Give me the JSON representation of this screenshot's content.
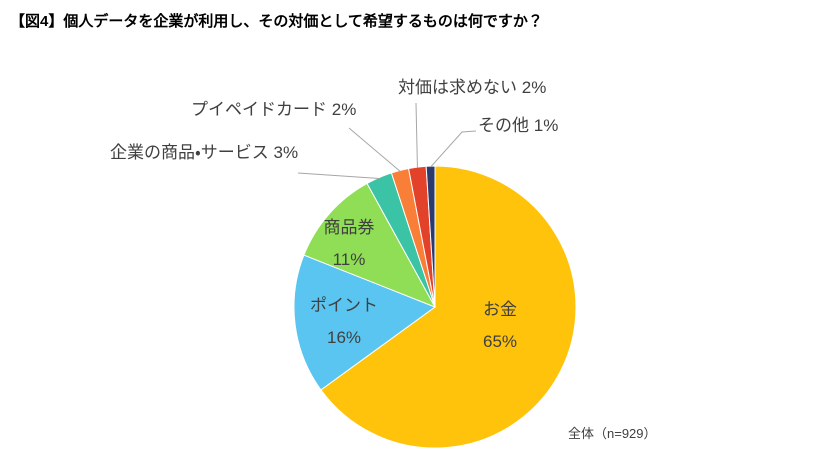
{
  "page": {
    "title": "【図4】個人データを企業が利用し、その対価として希望するものは何ですか？",
    "note": "全体（n=929）"
  },
  "chart_data": {
    "type": "pie",
    "title": "【図4】個人データを企業が利用し、その対価として希望するものは何ですか？",
    "note": "全体（n=929）",
    "sample_size": 929,
    "unit": "%",
    "start_angle_deg": 0,
    "direction": "clockwise",
    "legend": "none",
    "leader_line_color": "#A6A6A6",
    "slices": [
      {
        "label": "お金",
        "value": 65,
        "pct": "65%",
        "color": "#FFC30B",
        "label_position": "inside"
      },
      {
        "label": "ポイント",
        "value": 16,
        "pct": "16%",
        "color": "#59C5F0",
        "label_position": "inside"
      },
      {
        "label": "商品券",
        "value": 11,
        "pct": "11%",
        "color": "#8FDE55",
        "label_position": "inside"
      },
      {
        "label": "企業の商品・サービス",
        "value": 3,
        "pct": "3%",
        "color": "#3BC3A6",
        "label_position": "outside"
      },
      {
        "label": "プイペイドカード",
        "value": 2,
        "pct": "2%",
        "color": "#F97E38",
        "label_position": "outside"
      },
      {
        "label": "対価は求めない",
        "value": 2,
        "pct": "2%",
        "color": "#E24229",
        "label_position": "outside"
      },
      {
        "label": "その他",
        "value": 1,
        "pct": "1%",
        "color": "#2B3B6E",
        "label_position": "outside"
      }
    ]
  }
}
